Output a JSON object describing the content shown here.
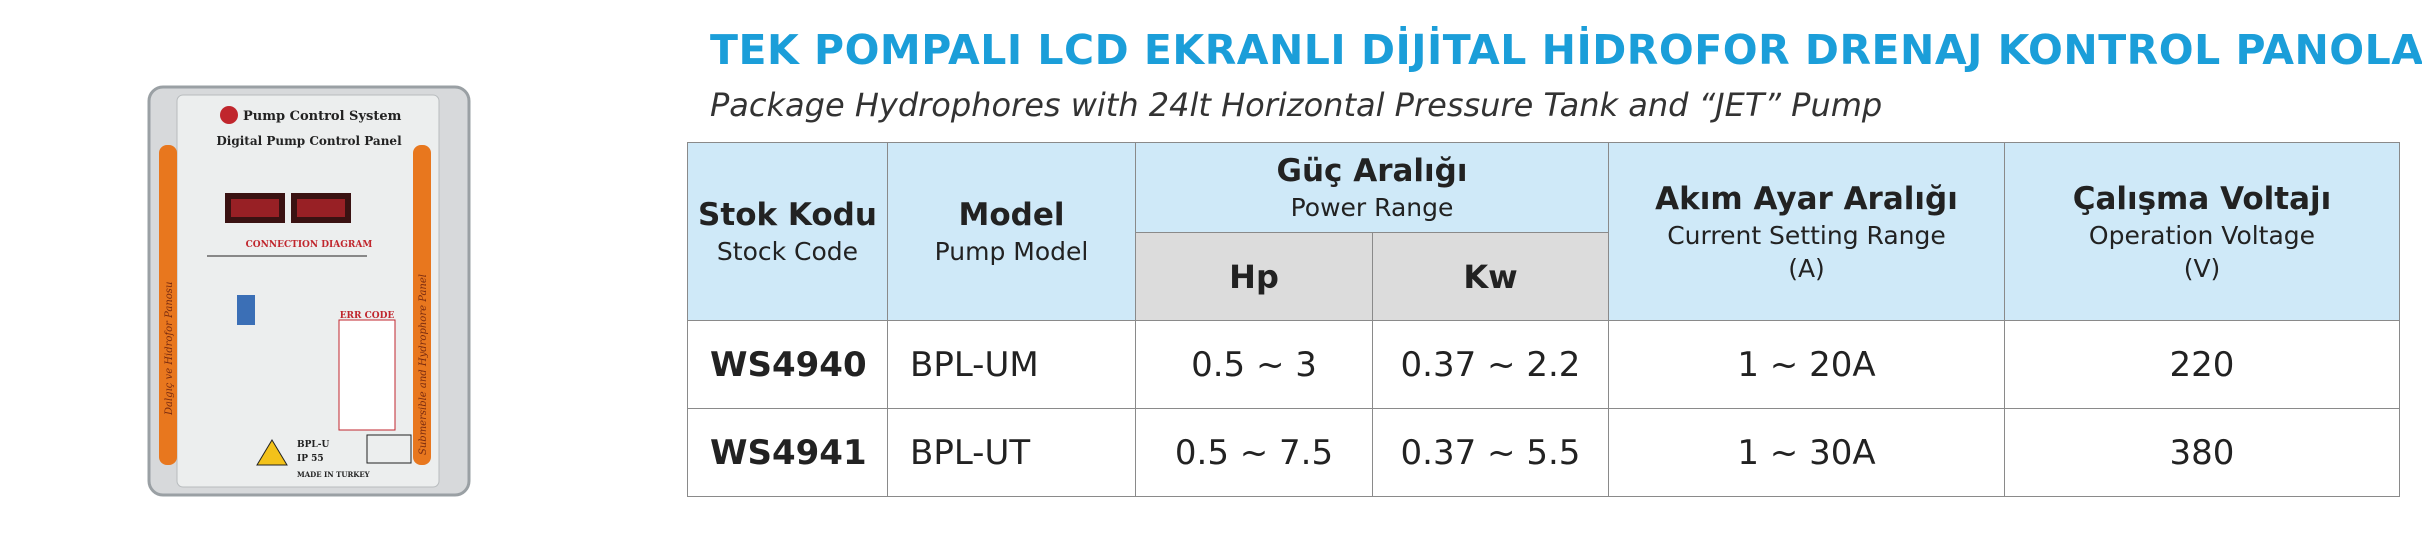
{
  "header": {
    "title": "TEK POMPALI LCD EKRANLI DİJİTAL HİDROFOR DRENAJ KONTROL PANOLARI",
    "subtitle": "Package Hydrophores with 24lt Horizontal Pressure Tank and “JET” Pump"
  },
  "product": {
    "brand": "Pump Control System",
    "panel": "Digital Pump Control Panel",
    "diagram": "CONNECTION DIAGRAM",
    "err": "ERR CODE",
    "left_strip": "Dalgıç ve Hidrofor Panosu",
    "right_strip": "Submersible and Hydrophore Panel",
    "model": "BPL-U",
    "ip": "IP 55",
    "origin": "MADE IN TURKEY"
  },
  "table": {
    "columns": [
      {
        "title": "Stok Kodu",
        "subtitle": "Stock Code"
      },
      {
        "title": "Model",
        "subtitle": "Pump Model"
      },
      {
        "title": "Güç Aralığı",
        "subtitle": "Power Range",
        "subcolumns": [
          "Hp",
          "Kw"
        ]
      },
      {
        "title": "Akım Ayar Aralığı",
        "subtitle": "Current Setting Range",
        "unit": "(A)"
      },
      {
        "title": "Çalışma Voltajı",
        "subtitle": "Operation Voltage",
        "unit": "(V)"
      }
    ],
    "rows": [
      [
        "WS4940",
        "BPL-UM",
        "0.5 ~ 3",
        "0.37 ~ 2.2",
        "1 ~ 20A",
        "220"
      ],
      [
        "WS4941",
        "BPL-UT",
        "0.5 ~ 7.5",
        "0.37 ~ 5.5",
        "1 ~ 30A",
        "380"
      ]
    ]
  }
}
